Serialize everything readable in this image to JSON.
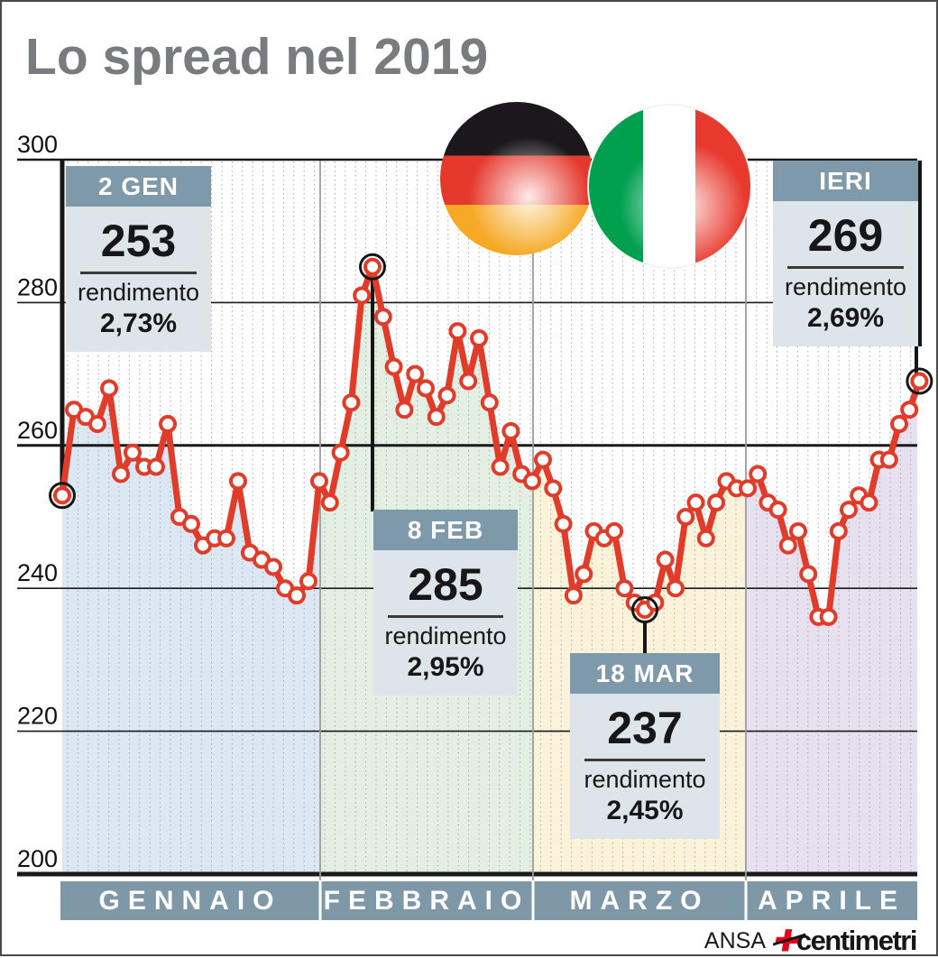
{
  "title": "Lo spread nel 2019",
  "flags": {
    "left": "germany",
    "right": "italy"
  },
  "footer": {
    "agency": "ANSA",
    "brand": "centimetri"
  },
  "colors": {
    "line_red": "#e13b2a",
    "box_header": "#7e99a9",
    "box_body": "#dde5ea",
    "month_band": "#7e98a8",
    "title_gray": "#7a7b7e",
    "grid_black": "#1a1a1a",
    "dotted_gray": "#a9a9a9"
  },
  "chart_data": {
    "type": "line",
    "title": "Lo spread nel 2019",
    "ylim": [
      200,
      300
    ],
    "y_ticks": [
      300,
      280,
      260,
      240,
      220,
      200
    ],
    "grid": "on",
    "legend": "none",
    "months": [
      {
        "label": "GENNAIO",
        "fill": "#dbe8f4",
        "values": [
          253,
          265,
          264,
          263,
          268,
          256,
          259,
          257,
          257,
          263,
          250,
          249,
          246,
          247,
          247,
          255,
          245,
          244,
          243,
          240,
          239,
          241
        ]
      },
      {
        "label": "FEBBRAIO",
        "fill": "#e3efe3",
        "values": [
          255,
          252,
          259,
          266,
          281,
          285,
          278,
          271,
          265,
          270,
          268,
          264,
          267,
          276,
          269,
          275,
          266,
          257,
          262,
          256,
          255
        ]
      },
      {
        "label": "MARZO",
        "fill": "#faf3da",
        "values": [
          258,
          254,
          249,
          239,
          242,
          248,
          247,
          248,
          240,
          238,
          237,
          238,
          244,
          240,
          250,
          252,
          247,
          252,
          255,
          254
        ]
      },
      {
        "label": "APRILE",
        "fill": "#e7e0ee",
        "values": [
          254,
          256,
          252,
          251,
          246,
          248,
          242,
          236,
          236,
          248,
          251,
          253,
          252,
          258,
          258,
          263,
          265,
          269
        ]
      }
    ],
    "highlights": [
      {
        "month": 0,
        "index": 0,
        "date": "2 GEN",
        "value": 253,
        "yield_label": "rendimento",
        "yield": "2,73%"
      },
      {
        "month": 1,
        "index": 5,
        "date": "8 FEB",
        "value": 285,
        "yield_label": "rendimento",
        "yield": "2,95%"
      },
      {
        "month": 2,
        "index": 10,
        "date": "18 MAR",
        "value": 237,
        "yield_label": "rendimento",
        "yield": "2,45%"
      },
      {
        "month": 3,
        "index": 17,
        "date": "IERI",
        "value": 269,
        "yield_label": "rendimento",
        "yield": "2,69%"
      }
    ]
  }
}
